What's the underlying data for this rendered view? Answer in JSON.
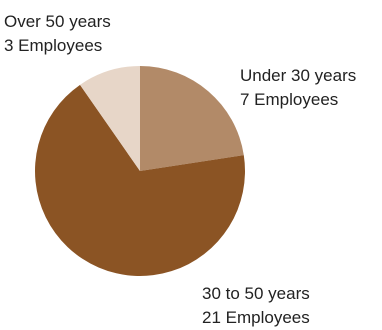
{
  "chart_data": {
    "type": "pie",
    "start": "12 o'clock",
    "direction": "clockwise",
    "slices": [
      {
        "label": "Under 30 years",
        "count_label": "7 Employees",
        "value": 7,
        "color": "#b28a68"
      },
      {
        "label": "30 to 50 years",
        "count_label": "21 Employees",
        "value": 21,
        "color": "#8b5424"
      },
      {
        "label": "Over 50 years",
        "count_label": "3 Employees",
        "value": 3,
        "color": "#e7d6c8"
      }
    ]
  }
}
